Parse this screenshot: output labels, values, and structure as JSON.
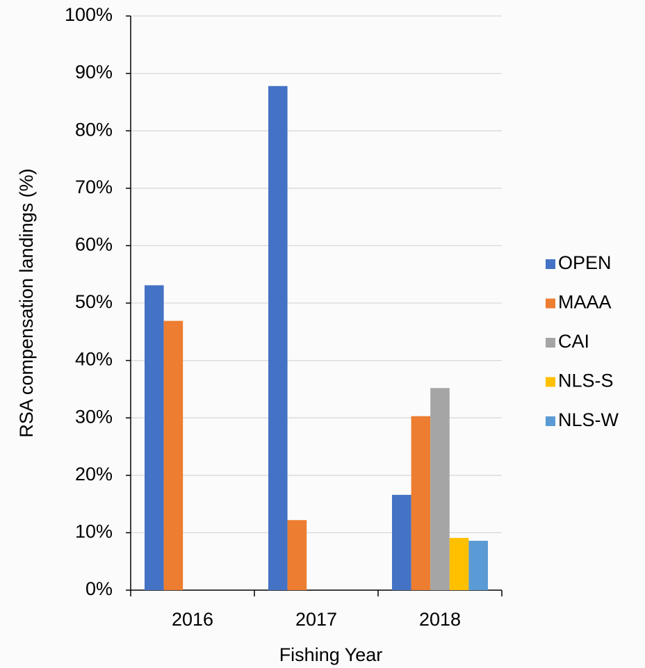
{
  "chart_data": {
    "type": "bar",
    "xlabel": "Fishing Year",
    "ylabel": "RSA compensation landings (%)",
    "categories": [
      "2016",
      "2017",
      "2018"
    ],
    "series": [
      {
        "name": "OPEN",
        "color": "#4472c4",
        "values": [
          53.1,
          87.8,
          16.6
        ]
      },
      {
        "name": "MAAA",
        "color": "#ed7d31",
        "values": [
          46.9,
          12.2,
          30.3
        ]
      },
      {
        "name": "CAI",
        "color": "#a5a5a5",
        "values": [
          0,
          0,
          35.2
        ]
      },
      {
        "name": "NLS-S",
        "color": "#ffc000",
        "values": [
          0,
          0,
          9.1
        ]
      },
      {
        "name": "NLS-W",
        "color": "#5b9bd5",
        "values": [
          0,
          0,
          8.6
        ]
      }
    ],
    "ylim": [
      0,
      100
    ],
    "yticks": [
      {
        "value": 0,
        "label": "0%"
      },
      {
        "value": 10,
        "label": "10%"
      },
      {
        "value": 20,
        "label": "20%"
      },
      {
        "value": 30,
        "label": "30%"
      },
      {
        "value": 40,
        "label": "40%"
      },
      {
        "value": 50,
        "label": "50%"
      },
      {
        "value": 60,
        "label": "60%"
      },
      {
        "value": 70,
        "label": "70%"
      },
      {
        "value": 80,
        "label": "80%"
      },
      {
        "value": 90,
        "label": "90%"
      },
      {
        "value": 100,
        "label": "100%"
      }
    ],
    "grid": true,
    "legend": "right"
  }
}
